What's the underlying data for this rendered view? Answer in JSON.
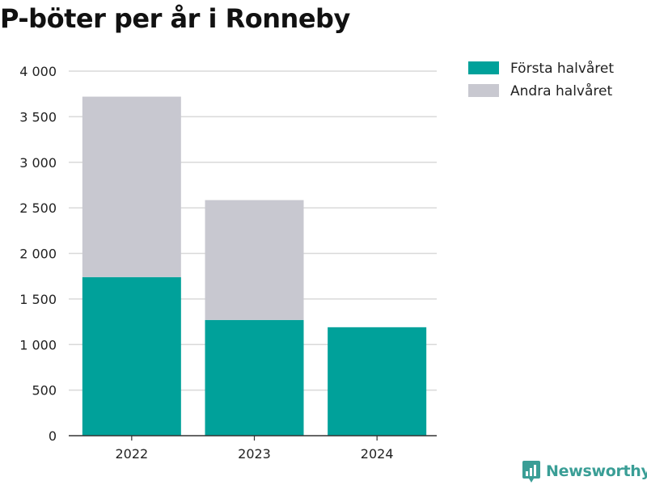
{
  "colors": {
    "first_half": "#00a19a",
    "second_half": "#c8c8d0",
    "grid": "#d9d9d9",
    "axis": "#333333",
    "brand": "#3a9e96"
  },
  "brand": {
    "name": "Newsworthy",
    "icon": "newsworthy-logo-icon"
  },
  "chart_data": {
    "type": "bar",
    "stacked": true,
    "title": "P-böter per år i Ronneby",
    "xlabel": "",
    "ylabel": "",
    "categories": [
      "2022",
      "2023",
      "2024"
    ],
    "series": [
      {
        "name": "Första halvåret",
        "values": [
          1740,
          1270,
          1190
        ]
      },
      {
        "name": "Andra halvåret",
        "values": [
          1980,
          1315,
          0
        ]
      }
    ],
    "ylim": [
      0,
      4000
    ],
    "yticks": [
      0,
      500,
      1000,
      1500,
      2000,
      2500,
      3000,
      3500,
      4000
    ],
    "ytick_labels": [
      "0",
      "500",
      "1 000",
      "1 500",
      "2 000",
      "2 500",
      "3 000",
      "3 500",
      "4 000"
    ],
    "grid": true,
    "legend_position": "top-right"
  }
}
